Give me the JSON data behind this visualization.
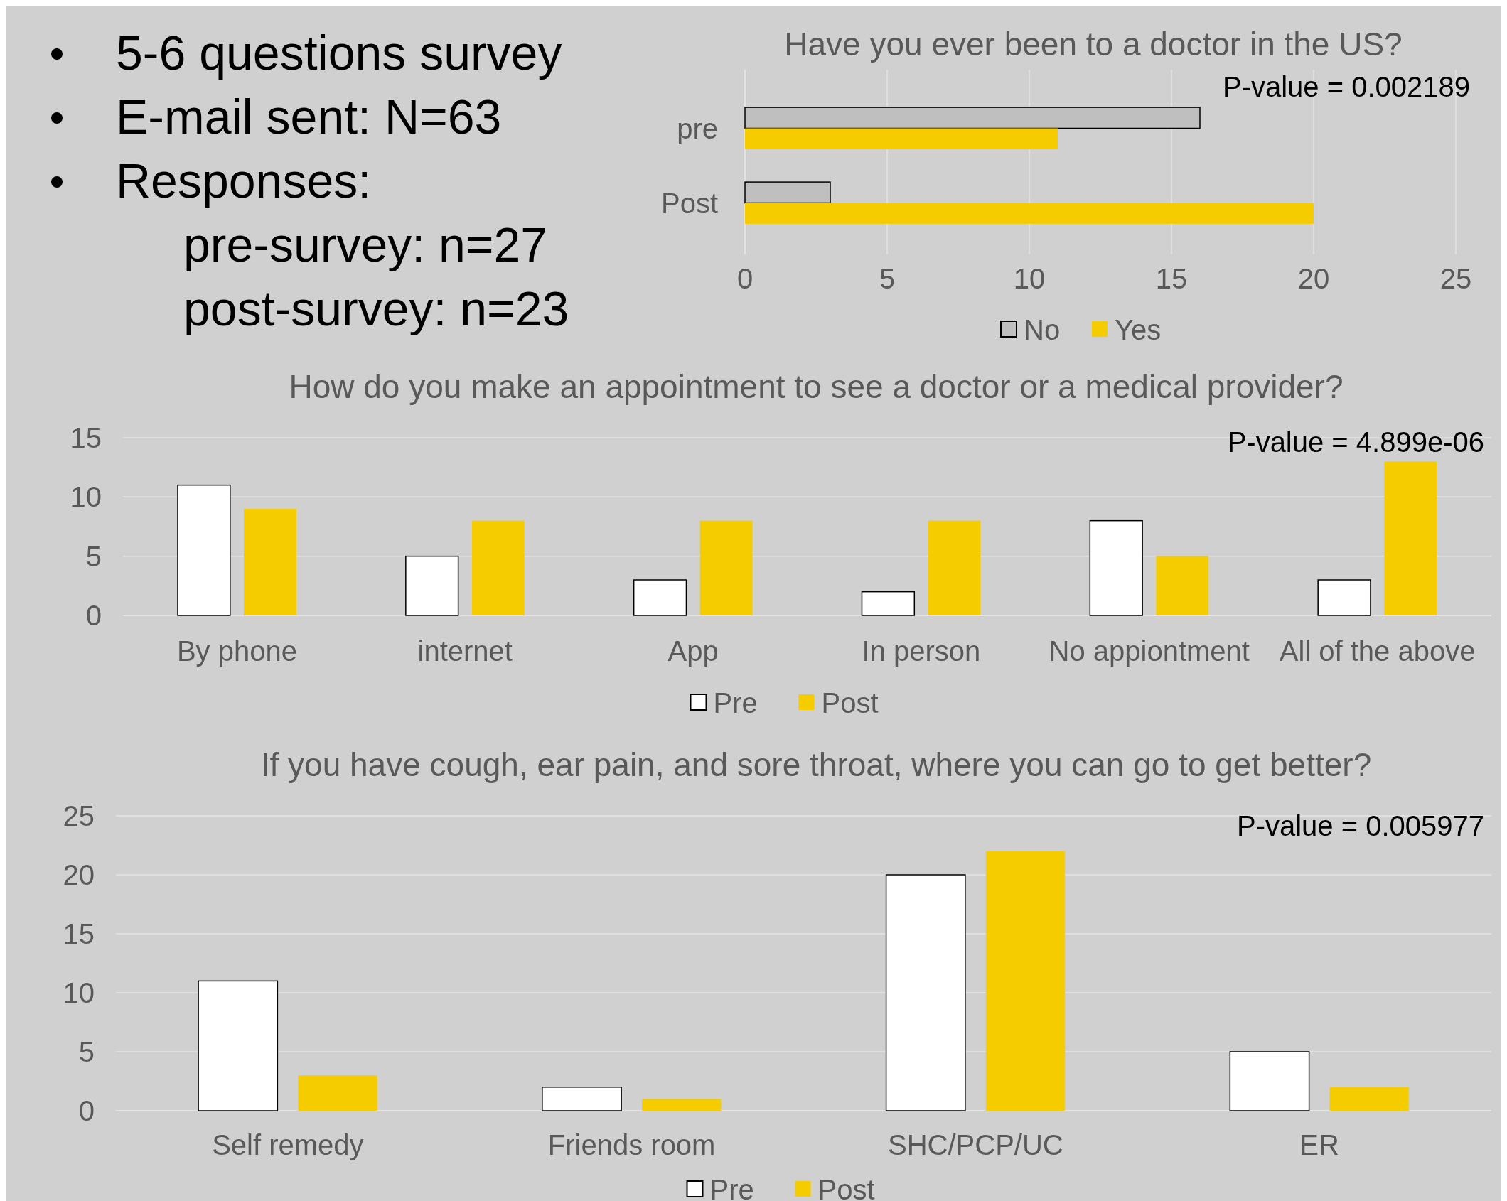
{
  "chart_data": [
    {
      "type": "other",
      "annotations": [
        "5-6 questions survey",
        "E-mail sent: N=63",
        "Responses:",
        "pre-survey: n=27",
        "post-survey: n=23"
      ]
    },
    {
      "type": "bar",
      "orientation": "horizontal",
      "title": "Have you ever been to a doctor in the US?",
      "categories": [
        "pre",
        "Post"
      ],
      "series": [
        {
          "name": "No",
          "color": "#bfbfbf",
          "values": [
            16,
            3
          ]
        },
        {
          "name": "Yes",
          "color": "#f5cc00",
          "values": [
            11,
            20
          ]
        }
      ],
      "xlim": [
        0,
        25
      ],
      "xticks": [
        0,
        5,
        10,
        15,
        20,
        25
      ],
      "grid": "x",
      "legend": "bottom",
      "annotations": [
        "P-value = 0.002189"
      ]
    },
    {
      "type": "bar",
      "title": "How do you make an appointment to see a doctor or a medical provider?",
      "categories": [
        "By phone",
        "internet",
        "App",
        "In person",
        "No appiontment",
        "All of the above"
      ],
      "series": [
        {
          "name": "Pre",
          "color": "#ffffff",
          "values": [
            11,
            5,
            3,
            2,
            8,
            3
          ]
        },
        {
          "name": "Post",
          "color": "#f5cc00",
          "values": [
            9,
            8,
            8,
            8,
            5,
            13
          ]
        }
      ],
      "ylim": [
        0,
        15
      ],
      "yticks": [
        0,
        5,
        10,
        15
      ],
      "grid": "y",
      "legend": "bottom",
      "annotations": [
        "P-value = 4.899e-06"
      ]
    },
    {
      "type": "bar",
      "title": "If you have cough, ear pain, and sore throat, where you can go to get better?",
      "categories": [
        "Self remedy",
        "Friends room",
        "SHC/PCP/UC",
        "ER"
      ],
      "series": [
        {
          "name": "Pre",
          "color": "#ffffff",
          "values": [
            11,
            2,
            20,
            5
          ]
        },
        {
          "name": "Post",
          "color": "#f5cc00",
          "values": [
            3,
            1,
            22,
            2
          ]
        }
      ],
      "ylim": [
        0,
        25
      ],
      "yticks": [
        0,
        5,
        10,
        15,
        20,
        25
      ],
      "grid": "y",
      "legend": "bottom",
      "annotations": [
        "P-value = 0.005977"
      ]
    }
  ]
}
